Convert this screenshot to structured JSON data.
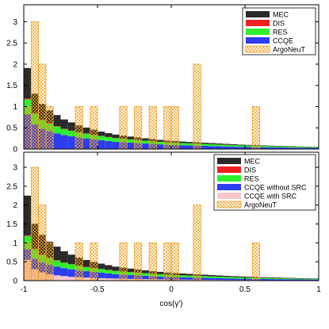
{
  "chart_data": [
    {
      "type": "bar",
      "stacked": true,
      "x_edges_start": -1.0,
      "bin_width": 0.05,
      "xlim": [
        -1,
        1
      ],
      "ylim": [
        0,
        3.4
      ],
      "yticks": [
        "0",
        "0.5",
        "1",
        "1.5",
        "2",
        "2.5",
        "3"
      ],
      "xticks": [
        "-1",
        "-0.5",
        "0",
        "0.5",
        "1"
      ],
      "xlabel": "",
      "legend_position": "top-right",
      "series": [
        {
          "name": "CCQE",
          "color": "#2d3df0",
          "values": [
            0.82,
            0.58,
            0.48,
            0.42,
            0.37,
            0.33,
            0.3,
            0.27,
            0.25,
            0.23,
            0.21,
            0.19,
            0.17,
            0.16,
            0.15,
            0.14,
            0.13,
            0.12,
            0.11,
            0.1,
            0.095,
            0.09,
            0.085,
            0.08,
            0.075,
            0.07,
            0.065,
            0.06,
            0.055,
            0.05,
            0.048,
            0.045,
            0.042,
            0.04,
            0.038,
            0.036,
            0.034,
            0.032,
            0.03,
            0.028
          ]
        },
        {
          "name": "RES",
          "color": "#2ef02e",
          "values": [
            0.35,
            0.25,
            0.2,
            0.18,
            0.16,
            0.14,
            0.13,
            0.12,
            0.11,
            0.1,
            0.095,
            0.09,
            0.085,
            0.08,
            0.075,
            0.07,
            0.065,
            0.06,
            0.058,
            0.055,
            0.052,
            0.05,
            0.048,
            0.046,
            0.044,
            0.042,
            0.04,
            0.038,
            0.036,
            0.034,
            0.032,
            0.03,
            0.028,
            0.026,
            0.024,
            0.022,
            0.02,
            0.018,
            0.016,
            0.015
          ]
        },
        {
          "name": "DIS",
          "color": "#f02020",
          "values": [
            0.02,
            0.015,
            0.012,
            0.01,
            0.01,
            0.008,
            0.008,
            0.007,
            0.006,
            0.006,
            0.005,
            0.005,
            0.005,
            0.004,
            0.004,
            0.004,
            0.003,
            0.003,
            0.003,
            0.003,
            0.003,
            0.002,
            0.002,
            0.002,
            0.002,
            0.002,
            0.002,
            0.002,
            0.001,
            0.001,
            0.001,
            0.001,
            0.001,
            0.001,
            0.001,
            0.001,
            0.001,
            0.001,
            0.001,
            0.001
          ]
        },
        {
          "name": "MEC",
          "color": "#2a2a2a",
          "values": [
            0.72,
            0.46,
            0.37,
            0.3,
            0.26,
            0.22,
            0.19,
            0.16,
            0.14,
            0.12,
            0.1,
            0.09,
            0.08,
            0.07,
            0.065,
            0.06,
            0.055,
            0.05,
            0.045,
            0.04,
            0.038,
            0.035,
            0.032,
            0.03,
            0.028,
            0.026,
            0.024,
            0.022,
            0.02,
            0.018,
            0.016,
            0.015,
            0.014,
            0.013,
            0.012,
            0.011,
            0.01,
            0.009,
            0.008,
            0.007
          ]
        }
      ],
      "legend_order": [
        "MEC",
        "DIS",
        "RES",
        "CCQE",
        "ArgoNeuT"
      ],
      "data_histogram": {
        "name": "ArgoNeuT",
        "color": "#f0a020",
        "bars": [
          [
            -0.975,
            1
          ],
          [
            -0.925,
            3
          ],
          [
            -0.875,
            2
          ],
          [
            -0.825,
            1
          ],
          [
            -0.625,
            1
          ],
          [
            -0.525,
            1
          ],
          [
            -0.325,
            1
          ],
          [
            -0.225,
            1
          ],
          [
            -0.125,
            1
          ],
          [
            -0.025,
            1
          ],
          [
            0.025,
            1
          ],
          [
            0.175,
            2
          ],
          [
            0.575,
            1
          ]
        ]
      }
    },
    {
      "type": "bar",
      "stacked": true,
      "x_edges_start": -1.0,
      "bin_width": 0.05,
      "xlim": [
        -1,
        1
      ],
      "ylim": [
        0,
        3.4
      ],
      "yticks": [
        "0",
        "0.5",
        "1",
        "1.5",
        "2",
        "2.5",
        "3"
      ],
      "xticks": [
        "-1",
        "-0.5",
        "0",
        "0.5",
        "1"
      ],
      "xlabel": "cos(γ')",
      "legend_position": "top-right",
      "series": [
        {
          "name": "CCQE with SRC",
          "color": "#f8c8c8",
          "values": [
            0.55,
            0.3,
            0.22,
            0.17,
            0.14,
            0.12,
            0.1,
            0.09,
            0.08,
            0.07,
            0.065,
            0.06,
            0.055,
            0.05,
            0.045,
            0.042,
            0.04,
            0.038,
            0.035,
            0.032,
            0.03,
            0.028,
            0.026,
            0.024,
            0.022,
            0.02,
            0.018,
            0.017,
            0.016,
            0.015,
            0.014,
            0.013,
            0.012,
            0.011,
            0.01,
            0.009,
            0.009,
            0.008,
            0.008,
            0.007
          ]
        },
        {
          "name": "CCQE without SRC",
          "color": "#2d3df0",
          "values": [
            0.28,
            0.28,
            0.26,
            0.25,
            0.23,
            0.21,
            0.2,
            0.18,
            0.17,
            0.16,
            0.145,
            0.13,
            0.115,
            0.11,
            0.105,
            0.098,
            0.09,
            0.082,
            0.075,
            0.068,
            0.065,
            0.062,
            0.059,
            0.056,
            0.053,
            0.05,
            0.047,
            0.043,
            0.039,
            0.035,
            0.034,
            0.032,
            0.03,
            0.029,
            0.028,
            0.027,
            0.025,
            0.024,
            0.022,
            0.021
          ]
        },
        {
          "name": "RES",
          "color": "#2ef02e",
          "values": [
            0.35,
            0.25,
            0.2,
            0.18,
            0.16,
            0.14,
            0.13,
            0.12,
            0.11,
            0.1,
            0.095,
            0.09,
            0.085,
            0.08,
            0.075,
            0.07,
            0.065,
            0.06,
            0.058,
            0.055,
            0.052,
            0.05,
            0.048,
            0.046,
            0.044,
            0.042,
            0.04,
            0.038,
            0.036,
            0.034,
            0.032,
            0.03,
            0.028,
            0.026,
            0.024,
            0.022,
            0.02,
            0.018,
            0.016,
            0.015
          ]
        },
        {
          "name": "DIS",
          "color": "#f02020",
          "values": [
            0.02,
            0.015,
            0.012,
            0.01,
            0.01,
            0.008,
            0.008,
            0.007,
            0.006,
            0.006,
            0.005,
            0.005,
            0.005,
            0.004,
            0.004,
            0.004,
            0.003,
            0.003,
            0.003,
            0.003,
            0.003,
            0.002,
            0.002,
            0.002,
            0.002,
            0.002,
            0.002,
            0.002,
            0.001,
            0.001,
            0.001,
            0.001,
            0.001,
            0.001,
            0.001,
            0.001,
            0.001,
            0.001,
            0.001,
            0.001
          ]
        },
        {
          "name": "MEC",
          "color": "#2a2a2a",
          "values": [
            1.05,
            0.66,
            0.52,
            0.42,
            0.36,
            0.3,
            0.25,
            0.21,
            0.18,
            0.16,
            0.14,
            0.125,
            0.11,
            0.1,
            0.09,
            0.082,
            0.075,
            0.068,
            0.062,
            0.056,
            0.052,
            0.048,
            0.044,
            0.04,
            0.037,
            0.034,
            0.031,
            0.028,
            0.026,
            0.024,
            0.022,
            0.02,
            0.019,
            0.018,
            0.017,
            0.016,
            0.015,
            0.014,
            0.013,
            0.012
          ]
        }
      ],
      "legend_order": [
        "MEC",
        "DIS",
        "RES",
        "CCQE without SRC",
        "CCQE with SRC",
        "ArgoNeuT"
      ],
      "data_histogram": {
        "name": "ArgoNeuT",
        "color": "#f0a020",
        "bars": [
          [
            -0.975,
            1
          ],
          [
            -0.925,
            3
          ],
          [
            -0.875,
            2
          ],
          [
            -0.825,
            1
          ],
          [
            -0.625,
            1
          ],
          [
            -0.525,
            1
          ],
          [
            -0.325,
            1
          ],
          [
            -0.225,
            1
          ],
          [
            -0.125,
            1
          ],
          [
            -0.025,
            1
          ],
          [
            0.025,
            1
          ],
          [
            0.175,
            2
          ],
          [
            0.575,
            1
          ]
        ]
      }
    }
  ]
}
